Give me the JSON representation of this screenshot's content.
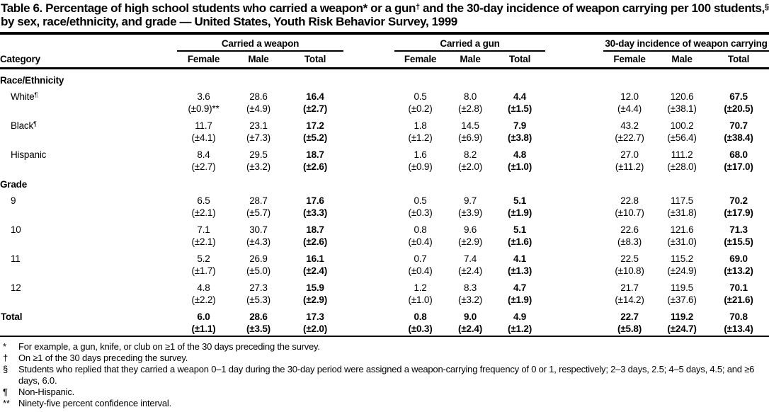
{
  "title_segments": [
    {
      "t": "Table 6. Percentage of high school students who carried a weapon* or a gun"
    },
    {
      "t": "†",
      "sup": true
    },
    {
      "t": " and the 30-day incidence of weapon carrying per 100 students,"
    },
    {
      "t": "§",
      "sup": true
    },
    {
      "t": " by sex, race/ethnicity, and grade — United States, Youth Risk Behavior Survey, 1999"
    }
  ],
  "table": {
    "category_header": "Category",
    "groups": [
      {
        "label": "Carried a weapon",
        "cols": [
          "Female",
          "Male",
          "Total"
        ]
      },
      {
        "label": "Carried a gun",
        "cols": [
          "Female",
          "Male",
          "Total"
        ]
      },
      {
        "label": "30-day incidence of weapon carrying",
        "cols": [
          "Female",
          "Male",
          "Total"
        ]
      }
    ],
    "rows": [
      {
        "type": "section",
        "label": "Race/Ethnicity"
      },
      {
        "type": "data",
        "label": "White",
        "label_sup": "¶",
        "indent": true,
        "values": [
          "3.6",
          "28.6",
          "16.4",
          "0.5",
          "8.0",
          "4.4",
          "12.0",
          "120.6",
          "67.5"
        ],
        "ci": [
          "(±0.9)**",
          "(±4.9)",
          "(±2.7)",
          "(±0.2)",
          "(±2.8)",
          "(±1.5)",
          "(±4.4)",
          "(±38.1)",
          "(±20.5)"
        ]
      },
      {
        "type": "data",
        "label": "Black",
        "label_sup": "¶",
        "indent": true,
        "values": [
          "11.7",
          "23.1",
          "17.2",
          "1.8",
          "14.5",
          "7.9",
          "43.2",
          "100.2",
          "70.7"
        ],
        "ci": [
          "(±4.1)",
          "(±7.3)",
          "(±5.2)",
          "(±1.2)",
          "(±6.9)",
          "(±3.8)",
          "(±22.7)",
          "(±56.4)",
          "(±38.4)"
        ]
      },
      {
        "type": "data",
        "label": "Hispanic",
        "indent": true,
        "values": [
          "8.4",
          "29.5",
          "18.7",
          "1.6",
          "8.2",
          "4.8",
          "27.0",
          "111.2",
          "68.0"
        ],
        "ci": [
          "(±2.7)",
          "(±3.2)",
          "(±2.6)",
          "(±0.9)",
          "(±2.0)",
          "(±1.0)",
          "(±11.2)",
          "(±28.0)",
          "(±17.0)"
        ]
      },
      {
        "type": "section",
        "label": "Grade"
      },
      {
        "type": "data",
        "label": "9",
        "indent": true,
        "values": [
          "6.5",
          "28.7",
          "17.6",
          "0.5",
          "9.7",
          "5.1",
          "22.8",
          "117.5",
          "70.2"
        ],
        "ci": [
          "(±2.1)",
          "(±5.7)",
          "(±3.3)",
          "(±0.3)",
          "(±3.9)",
          "(±1.9)",
          "(±10.7)",
          "(±31.8)",
          "(±17.9)"
        ]
      },
      {
        "type": "data",
        "label": "10",
        "indent": true,
        "values": [
          "7.1",
          "30.7",
          "18.7",
          "0.8",
          "9.6",
          "5.1",
          "22.6",
          "121.6",
          "71.3"
        ],
        "ci": [
          "(±2.1)",
          "(±4.3)",
          "(±2.6)",
          "(±0.4)",
          "(±2.9)",
          "(±1.6)",
          "(±8.3)",
          "(±31.0)",
          "(±15.5)"
        ]
      },
      {
        "type": "data",
        "label": "11",
        "indent": true,
        "values": [
          "5.2",
          "26.9",
          "16.1",
          "0.7",
          "7.4",
          "4.1",
          "22.5",
          "115.2",
          "69.0"
        ],
        "ci": [
          "(±1.7)",
          "(±5.0)",
          "(±2.4)",
          "(±0.4)",
          "(±2.4)",
          "(±1.3)",
          "(±10.8)",
          "(±24.9)",
          "(±13.2)"
        ]
      },
      {
        "type": "data",
        "label": "12",
        "indent": true,
        "values": [
          "4.8",
          "27.3",
          "15.9",
          "1.2",
          "8.3",
          "4.7",
          "21.7",
          "119.5",
          "70.1"
        ],
        "ci": [
          "(±2.2)",
          "(±5.3)",
          "(±2.9)",
          "(±1.0)",
          "(±3.2)",
          "(±1.9)",
          "(±14.2)",
          "(±37.6)",
          "(±21.6)"
        ]
      },
      {
        "type": "data",
        "label": "Total",
        "bold": true,
        "values": [
          "6.0",
          "28.6",
          "17.3",
          "0.8",
          "9.0",
          "4.9",
          "22.7",
          "119.2",
          "70.8"
        ],
        "ci": [
          "(±1.1)",
          "(±3.5)",
          "(±2.0)",
          "(±0.3)",
          "(±2.4)",
          "(±1.2)",
          "(±5.8)",
          "(±24.7)",
          "(±13.4)"
        ]
      }
    ]
  },
  "footnotes": [
    {
      "marker": "*",
      "text": "For example, a gun, knife, or club on ≥1 of the 30 days preceding the survey."
    },
    {
      "marker": "†",
      "text": "On ≥1 of the 30 days preceding the survey."
    },
    {
      "marker": "§",
      "text": "Students who replied that they carried a weapon 0–1 day during the 30-day period were assigned a weapon-carrying frequency of 0 or 1, respectively; 2–3 days, 2.5; 4–5 days, 4.5; and ≥6 days, 6.0."
    },
    {
      "marker": "¶",
      "text": "Non-Hispanic."
    },
    {
      "marker": "**",
      "text": "Ninety-five percent confidence interval."
    }
  ]
}
